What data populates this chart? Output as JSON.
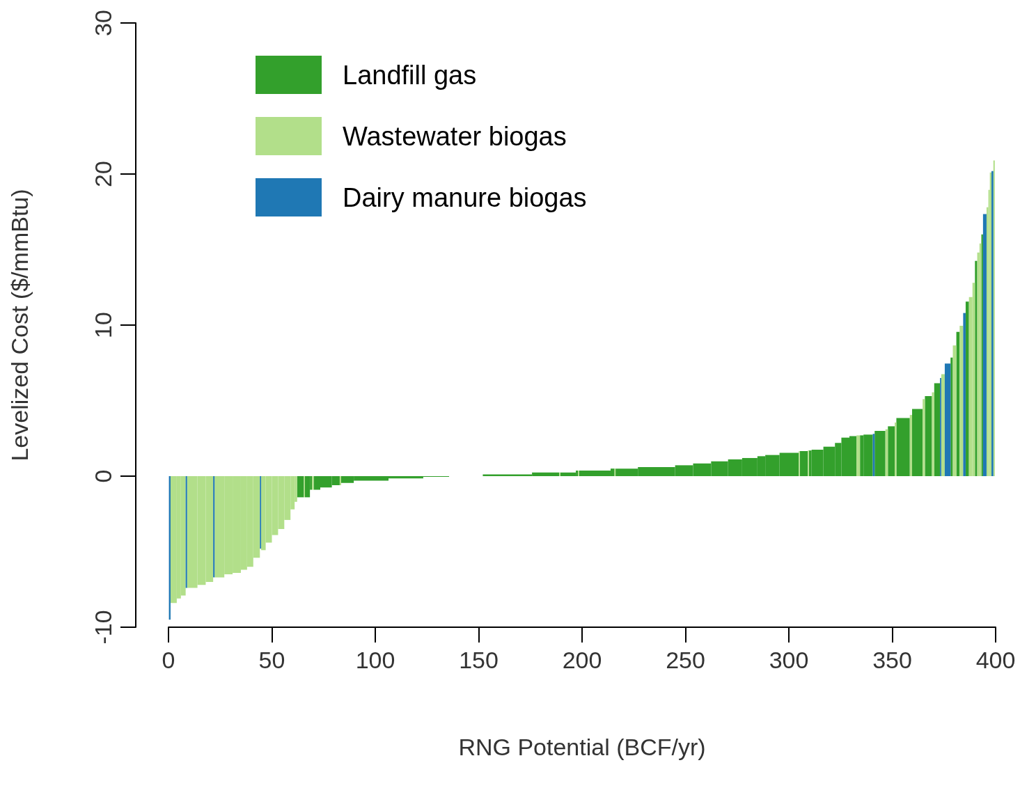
{
  "chart_data": {
    "type": "histogram",
    "xlabel": "RNG Potential (BCF/yr)",
    "ylabel": "Levelized Cost ($/mmBtu)",
    "xlim": [
      0,
      400
    ],
    "xticks": [
      0,
      50,
      100,
      150,
      200,
      250,
      300,
      350,
      400
    ],
    "ylim": [
      -10,
      30
    ],
    "yticks": [
      -10,
      0,
      10,
      20,
      30
    ],
    "grid": false,
    "legend": "top left",
    "bins": [
      0.2,
      1,
      4,
      6,
      8.3,
      9,
      14,
      18,
      21.6,
      22.3,
      27,
      31,
      35,
      38,
      41,
      44.2,
      44.8,
      47,
      50,
      53,
      56,
      59,
      61,
      62.2,
      65.5,
      66,
      68.4,
      69.4,
      70.2,
      73.4,
      79,
      82.8,
      83.5,
      89.6,
      106.4,
      123.2,
      135.7,
      152,
      175.8,
      189,
      189.5,
      197,
      198,
      198.5,
      213.8,
      215.7,
      216.2,
      227,
      245,
      253.7,
      262.4,
      270.6,
      277.4,
      284.8,
      288.6,
      295.5,
      304.8,
      305.3,
      309.2,
      309.7,
      311,
      316.7,
      322.3,
      325.4,
      329.3,
      332.7,
      334.4,
      336.1,
      340.6,
      341.5,
      346.7,
      347.9,
      351.2,
      352,
      358.5,
      359.6,
      364.7,
      365.8,
      369.2,
      370.3,
      373.1,
      373.7,
      375.4,
      378.2,
      379.3,
      381,
      382.6,
      384.3,
      385.5,
      387.1,
      388.8,
      390,
      391.1,
      392.2,
      393.1,
      393.9,
      395.6,
      396.5,
      397.2,
      398,
      398.9,
      399.6
    ],
    "series": [
      {
        "name": "Landfill gas",
        "color": "#33a02c",
        "values": [
          null,
          null,
          null,
          null,
          null,
          null,
          null,
          null,
          null,
          null,
          null,
          null,
          null,
          null,
          null,
          null,
          null,
          null,
          null,
          null,
          null,
          null,
          null,
          -1.4,
          null,
          -1.4,
          -0.9,
          null,
          -0.9,
          -0.75,
          -0.6,
          null,
          -0.45,
          -0.3,
          -0.15,
          -0.05,
          null,
          0.12,
          0.24,
          null,
          0.24,
          0.37,
          null,
          0.37,
          0.5,
          null,
          0.5,
          0.6,
          0.72,
          0.84,
          0.98,
          1.11,
          1.2,
          1.32,
          1.4,
          1.54,
          null,
          1.66,
          null,
          1.7,
          1.75,
          1.95,
          2.2,
          2.55,
          2.65,
          null,
          2.7,
          2.75,
          null,
          3.0,
          null,
          3.3,
          null,
          3.85,
          null,
          4.45,
          null,
          5.3,
          null,
          6.15,
          null,
          null,
          null,
          7.85,
          null,
          9.55,
          null,
          null,
          11.55,
          null,
          null,
          14.25,
          null,
          null,
          16.0,
          null,
          null,
          null,
          null,
          null,
          null
        ]
      },
      {
        "name": "Wastewater biogas",
        "color": "#b2df8a",
        "values": [
          null,
          -8.4,
          -8.1,
          -7.9,
          null,
          -7.4,
          -7.2,
          -7.0,
          null,
          -6.7,
          -6.5,
          -6.4,
          -6.2,
          -6.0,
          -5.4,
          null,
          -4.9,
          -4.4,
          -3.9,
          -3.5,
          -2.9,
          -2.2,
          -1.7,
          null,
          -1.4,
          null,
          null,
          -0.9,
          null,
          null,
          null,
          -0.6,
          null,
          null,
          null,
          null,
          null,
          null,
          null,
          0.24,
          null,
          null,
          0.37,
          null,
          null,
          0.5,
          null,
          null,
          null,
          null,
          null,
          null,
          null,
          null,
          null,
          null,
          1.66,
          null,
          1.7,
          null,
          null,
          null,
          null,
          null,
          null,
          2.7,
          null,
          null,
          null,
          null,
          3.1,
          null,
          3.55,
          null,
          4.05,
          null,
          5.1,
          null,
          5.55,
          null,
          null,
          6.75,
          null,
          null,
          8.65,
          null,
          9.95,
          null,
          null,
          11.85,
          12.8,
          null,
          14.8,
          15.4,
          null,
          null,
          17.8,
          18.95,
          20.1,
          null,
          20.9
        ]
      },
      {
        "name": "Dairy manure biogas",
        "color": "#1f78b4",
        "values": [
          -9.5,
          null,
          null,
          null,
          -7.4,
          null,
          null,
          null,
          -6.7,
          null,
          null,
          null,
          null,
          null,
          null,
          -4.8,
          null,
          null,
          null,
          null,
          null,
          null,
          null,
          null,
          null,
          null,
          null,
          null,
          null,
          null,
          null,
          null,
          null,
          null,
          null,
          null,
          null,
          null,
          null,
          null,
          null,
          null,
          null,
          null,
          null,
          null,
          null,
          null,
          null,
          null,
          null,
          null,
          null,
          null,
          null,
          null,
          null,
          null,
          null,
          null,
          null,
          null,
          null,
          null,
          null,
          null,
          null,
          null,
          2.8,
          null,
          null,
          null,
          null,
          null,
          null,
          null,
          null,
          null,
          null,
          null,
          6.5,
          null,
          7.45,
          null,
          null,
          null,
          null,
          10.8,
          null,
          null,
          null,
          null,
          null,
          null,
          null,
          17.35,
          null,
          null,
          null,
          20.2,
          null
        ]
      }
    ]
  }
}
